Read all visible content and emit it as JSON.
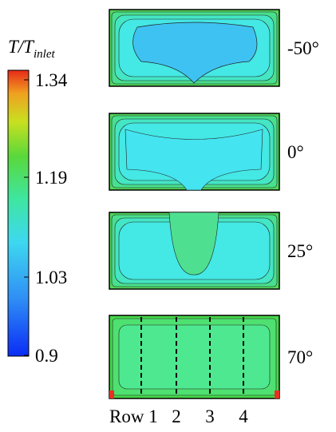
{
  "colorbar": {
    "title": "T/T",
    "title_subscript": "inlet",
    "ticks": [
      "1.34",
      "1.19",
      "1.03",
      "0.9"
    ]
  },
  "panels": [
    {
      "label": "-50°"
    },
    {
      "label": "0°"
    },
    {
      "label": "25°"
    },
    {
      "label": "70°"
    }
  ],
  "rows": {
    "prefix_label": "Row 1",
    "labels": [
      "2",
      "3",
      "4"
    ]
  }
}
